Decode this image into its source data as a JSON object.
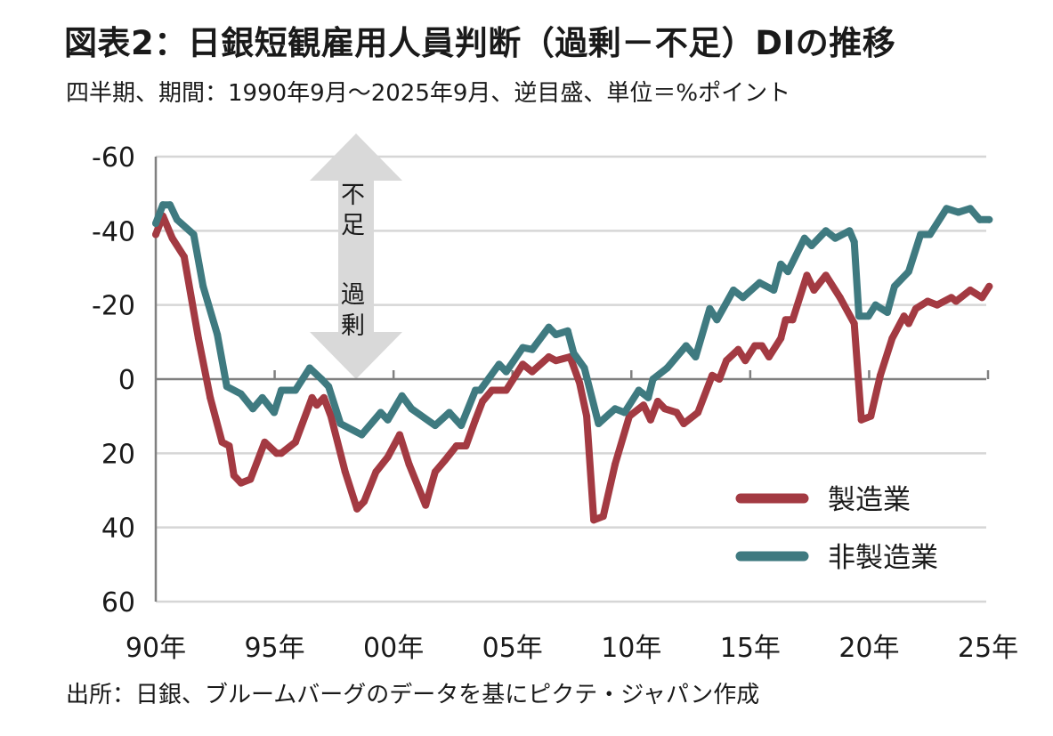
{
  "header": {
    "title": "図表2：日銀短観雇用人員判断（過剰－不足）DIの推移",
    "subtitle": "四半期、期間：1990年9月～2025年9月、逆目盛、単位＝%ポイント"
  },
  "footer": {
    "source": "出所：日銀、ブルームバーグのデータを基にピクテ・ジャパン作成"
  },
  "annotation": {
    "top": "不足",
    "bottom": "過剰"
  },
  "colors": {
    "manufacturing": "#a33a42",
    "non_manufacturing": "#3f7a80",
    "grid": "#d6d6d6",
    "axis": "#808080",
    "arrow": "#d9d9d9"
  },
  "chart_data": {
    "type": "line",
    "title": "図表2：日銀短観雇用人員判断（過剰－不足）DIの推移",
    "xlabel": "",
    "ylabel": "%ポイント",
    "y_inverted": true,
    "ylim": [
      -60,
      60
    ],
    "xlim": [
      1990,
      2025.75
    ],
    "yticks": [
      -60,
      -40,
      -20,
      0,
      20,
      40,
      60
    ],
    "ytick_labels": [
      "-60",
      "-40",
      "-20",
      "0",
      "20",
      "40",
      "60"
    ],
    "xticks": [
      1990,
      1995,
      2000,
      2005,
      2010,
      2015,
      2020,
      2025
    ],
    "xtick_labels": [
      "90年",
      "95年",
      "00年",
      "05年",
      "10年",
      "15年",
      "20年",
      "25年"
    ],
    "grid": true,
    "legend_position": "bottom-right",
    "series": [
      {
        "name": "製造業",
        "color_key": "manufacturing",
        "x": [
          1990,
          1990.3,
          1990.7,
          1991.2,
          1991.8,
          1992.3,
          1992.8,
          1993.1,
          1993.3,
          1993.6,
          1994.0,
          1994.6,
          1995.1,
          1995.3,
          1995.9,
          1996.6,
          1996.8,
          1997.1,
          1997.4,
          1998.0,
          1998.5,
          1998.8,
          1999.3,
          1999.8,
          2000.3,
          2000.7,
          2001.4,
          2001.8,
          2002.2,
          2002.7,
          2003.1,
          2003.5,
          2003.8,
          2004.2,
          2004.8,
          2005.5,
          2005.9,
          2006.6,
          2006.9,
          2007.5,
          2007.9,
          2008.2,
          2008.5,
          2008.9,
          2009.4,
          2010.0,
          2010.6,
          2010.9,
          2011.2,
          2011.5,
          2012.0,
          2012.3,
          2012.9,
          2013.5,
          2013.8,
          2014.1,
          2014.6,
          2014.9,
          2015.3,
          2015.6,
          2015.9,
          2016.4,
          2016.6,
          2016.9,
          2017.5,
          2017.8,
          2018.3,
          2018.9,
          2019.5,
          2019.8,
          2020.2,
          2020.6,
          2021.1,
          2021.6,
          2021.8,
          2022.1,
          2022.6,
          2023.0,
          2023.6,
          2023.8,
          2024.4,
          2024.9,
          2025.2
        ],
        "values": [
          -39,
          -44,
          -38,
          -33,
          -11,
          5,
          17,
          18,
          26,
          28,
          27,
          17,
          20,
          20,
          17,
          5,
          7,
          5,
          10,
          25,
          35,
          33,
          25,
          21,
          15,
          23,
          34,
          25,
          22,
          18,
          18,
          11,
          6,
          3,
          3,
          -4,
          -2,
          -6,
          -5,
          -6,
          1,
          10,
          38,
          37,
          23,
          10,
          7,
          11,
          6,
          8,
          9,
          12,
          9,
          -1,
          0,
          -5,
          -8,
          -5,
          -9,
          -9,
          -6,
          -11,
          -16,
          -16,
          -28,
          -24,
          -28,
          -22,
          -15,
          11,
          10,
          -1,
          -11,
          -17,
          -15,
          -19,
          -21,
          -20,
          -22,
          -21,
          -24,
          -22,
          -25
        ]
      },
      {
        "name": "非製造業",
        "color_key": "non_manufacturing",
        "x": [
          1990,
          1990.3,
          1990.6,
          1990.9,
          1991.6,
          1992.0,
          1992.6,
          1993.0,
          1993.6,
          1994.1,
          1994.5,
          1995.0,
          1995.3,
          1995.9,
          1996.5,
          1997.0,
          1997.3,
          1997.8,
          1998.7,
          1999.5,
          1999.8,
          2000.4,
          2000.8,
          2001.8,
          2002.4,
          2002.9,
          2003.5,
          2003.7,
          2004.5,
          2004.8,
          2005.5,
          2005.9,
          2006.6,
          2006.9,
          2007.4,
          2007.65,
          2008.1,
          2008.7,
          2009.4,
          2009.8,
          2010.4,
          2010.8,
          2011.0,
          2011.6,
          2012.4,
          2012.8,
          2013.4,
          2013.7,
          2014.4,
          2014.8,
          2015.5,
          2016.1,
          2016.4,
          2016.7,
          2017.4,
          2017.7,
          2018.3,
          2018.7,
          2019.3,
          2019.5,
          2019.7,
          2020.1,
          2020.4,
          2020.9,
          2021.2,
          2021.8,
          2022.3,
          2022.7,
          2023.4,
          2023.9,
          2024.4,
          2024.8,
          2025.2
        ],
        "values": [
          -42,
          -47,
          -47,
          -43,
          -39,
          -25,
          -12,
          2,
          4,
          8,
          5,
          9,
          3,
          3,
          -3,
          0,
          2,
          12,
          15,
          9,
          11,
          4.5,
          8,
          12.5,
          9,
          12.5,
          3,
          3,
          -4,
          -2,
          -8.5,
          -8,
          -14,
          -12,
          -13,
          -7,
          -3,
          12,
          8,
          9,
          3,
          5,
          0,
          -3,
          -9,
          -6,
          -19,
          -16,
          -24,
          -22,
          -26,
          -24,
          -31,
          -29,
          -38,
          -36,
          -40,
          -38,
          -40,
          -37,
          -17,
          -17,
          -20,
          -18,
          -25,
          -29,
          -39,
          -39,
          -46,
          -45,
          -46,
          -43,
          -43
        ]
      }
    ]
  }
}
